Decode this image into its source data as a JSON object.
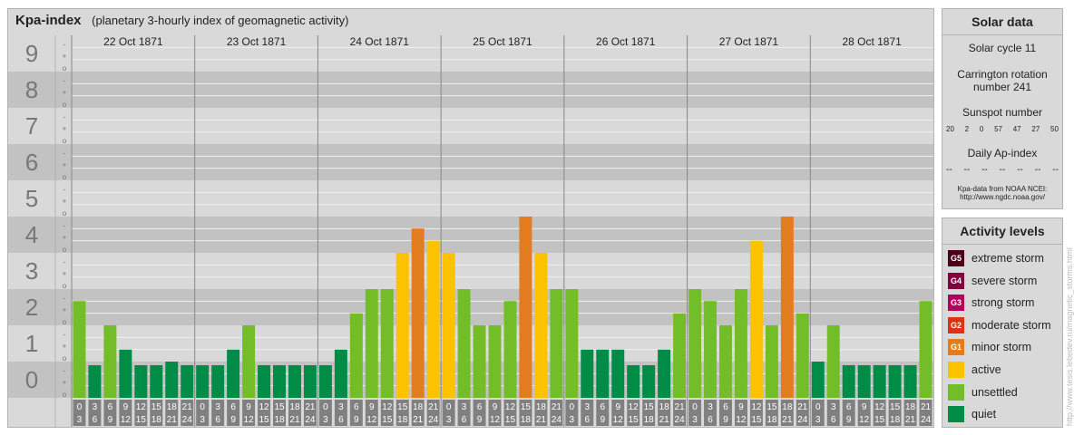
{
  "header": {
    "title": "Kpa-index",
    "subtitle": "(planetary 3-hourly index of geomagnetic activity)"
  },
  "chart_data": {
    "type": "bar",
    "days": [
      "22 Oct 1871",
      "23 Oct 1871",
      "24 Oct 1871",
      "25 Oct 1871",
      "26 Oct 1871",
      "27 Oct 1871",
      "28 Oct 1871"
    ],
    "intervals": [
      [
        "0",
        "3"
      ],
      [
        "3",
        "6"
      ],
      [
        "6",
        "9"
      ],
      [
        "9",
        "12"
      ],
      [
        "12",
        "15"
      ],
      [
        "15",
        "18"
      ],
      [
        "18",
        "21"
      ],
      [
        "21",
        "24"
      ]
    ],
    "y_ticks": [
      "0",
      "1",
      "2",
      "3",
      "4",
      "5",
      "6",
      "7",
      "8",
      "9"
    ],
    "sub_ticks": [
      "o",
      "+",
      "-"
    ],
    "ylim": [
      0,
      9
    ],
    "values": [
      2.67,
      0.67,
      2.0,
      1.33,
      0.33,
      0.67,
      1.0,
      0.0,
      0.0,
      0.33,
      1.33,
      2.0,
      0.67,
      0.33,
      0.33,
      0.33,
      0.0,
      1.33,
      2.33,
      3.0,
      3.0,
      4.0,
      4.67,
      4.33,
      4.0,
      3.0,
      2.0,
      2.0,
      2.67,
      5.0,
      4.0,
      3.0,
      3.0,
      1.33,
      1.33,
      1.33,
      0.67,
      0.67,
      1.33,
      2.33,
      3.0,
      2.67,
      2.0,
      3.0,
      4.33,
      2.0,
      5.0,
      2.33,
      1.0,
      2.0,
      0.0,
      0.0,
      0.67,
      0.67,
      0.67,
      2.67
    ]
  },
  "solar_data": {
    "title": "Solar data",
    "solar_cycle": "Solar cycle 11",
    "carrington_line1": "Carrington rotation",
    "carrington_line2": "number 241",
    "sunspot_label": "Sunspot number",
    "sunspot_values": [
      "20",
      "2",
      "0",
      "57",
      "47",
      "27",
      "50"
    ],
    "ap_label": "Daily Ap-index",
    "ap_values": [
      "--",
      "--",
      "--",
      "--",
      "--",
      "--",
      "--"
    ],
    "source_line1": "Kpa-data from NOAA NCEI:",
    "source_line2": "http://www.ngdc.noaa.gov/"
  },
  "activity_levels": {
    "title": "Activity levels",
    "items": [
      {
        "badge": "G5",
        "label": "extreme storm",
        "color": "#4d0019"
      },
      {
        "badge": "G4",
        "label": "severe storm",
        "color": "#800040"
      },
      {
        "badge": "G3",
        "label": "strong storm",
        "color": "#b3005a"
      },
      {
        "badge": "G2",
        "label": "moderate storm",
        "color": "#dd3311"
      },
      {
        "badge": "G1",
        "label": "minor storm",
        "color": "#e37c1e"
      },
      {
        "badge": "",
        "label": "active",
        "color": "#fcc200"
      },
      {
        "badge": "",
        "label": "unsettled",
        "color": "#73be28"
      },
      {
        "badge": "",
        "label": "quiet",
        "color": "#008c46"
      }
    ]
  },
  "credit": "http://www.tesis.lebedev.ru/magnetic_storms.html"
}
